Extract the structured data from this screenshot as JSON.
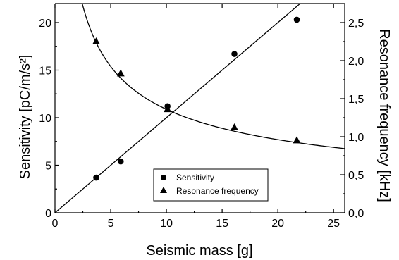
{
  "chart_data": {
    "type": "scatter",
    "xlabel": "Seismic mass [g]",
    "ylabel_left": "Sensitivity [pC/m/s²]",
    "ylabel_right": "Resonance frequency [kHz]",
    "xlim": [
      0,
      26
    ],
    "ylim_left": [
      0,
      22
    ],
    "ylim_right": [
      0,
      2.75
    ],
    "x_ticks": [
      0,
      5,
      10,
      15,
      20,
      25
    ],
    "x_tick_labels": [
      "0",
      "5",
      "10",
      "15",
      "20",
      "25"
    ],
    "y_left_ticks": [
      0,
      5,
      10,
      15,
      20
    ],
    "y_left_tick_labels": [
      "0",
      "5",
      "10",
      "15",
      "20"
    ],
    "y_right_ticks": [
      0,
      0.5,
      1.0,
      1.5,
      2.0,
      2.5
    ],
    "y_right_tick_labels": [
      "0,0",
      "0,5",
      "1,0",
      "1,5",
      "2,0",
      "2,5"
    ],
    "legend_position": "bottom-center",
    "series": [
      {
        "name": "Sensitivity",
        "axis": "left",
        "marker": "circle",
        "x": [
          3.7,
          5.9,
          10.1,
          16.1,
          21.7
        ],
        "y": [
          3.7,
          5.4,
          11.2,
          16.7,
          20.3
        ]
      },
      {
        "name": "Resonance frequency",
        "axis": "right",
        "marker": "triangle",
        "x": [
          3.7,
          5.9,
          10.1,
          16.1,
          21.7
        ],
        "y": [
          2.25,
          1.83,
          1.36,
          1.12,
          0.95
        ]
      }
    ],
    "fits": [
      {
        "axis": "left",
        "kind": "linear",
        "slope": 1.0,
        "intercept": 0
      },
      {
        "axis": "right",
        "kind": "inverse_sqrt",
        "coefficient": 4.3
      }
    ]
  }
}
